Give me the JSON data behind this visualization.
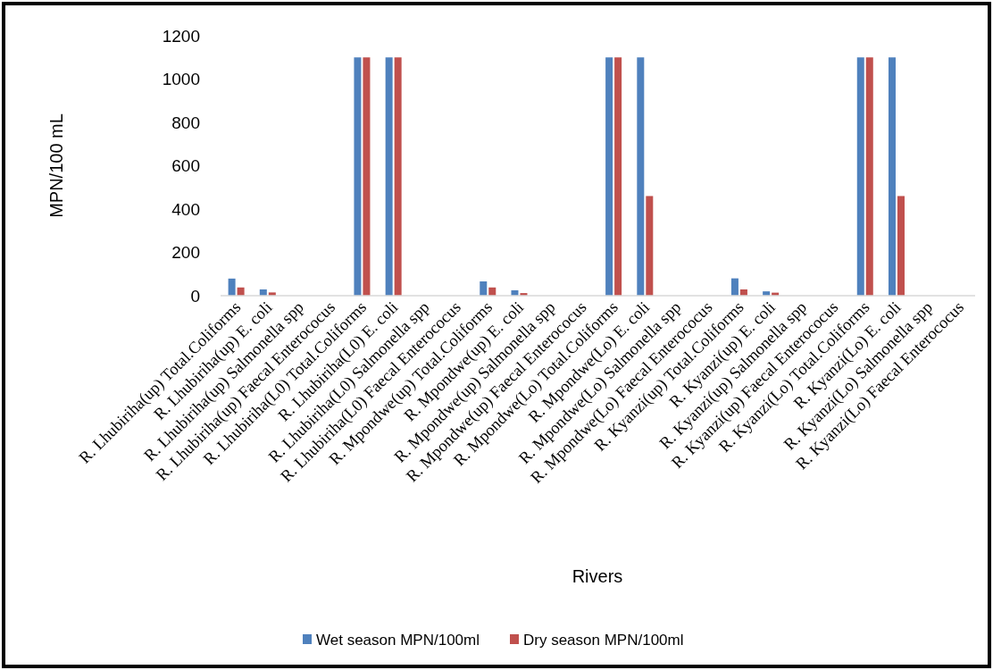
{
  "chart_data": {
    "type": "bar",
    "xlabel": "Rivers",
    "ylabel": "MPN/100 mL",
    "categories": [
      "R. Lhubiriha(up) Total.Coliforms",
      "R. Lhubiriha(up) E. coli",
      "R. Lhubiriha(up) Salmonella spp",
      "R. Lhubiriha(up) Faecal Enterococus",
      "R. Lhubiriha(L0) Total.Coliforms",
      "R. Lhubiriha(L0) E. coli",
      "R. Lhubiriha(L0) Salmonella spp",
      "R. Lhubiriha(L0) Faecal Enterococus",
      "R. Mpondwe(up) Total.Coliforms",
      "R. Mpondwe(up) E. coli",
      "R. Mpondwe(up) Salmonella spp",
      "R. Mpondwe(up) Faecal Enterococus",
      "R. Mpondwe(Lo) Total.Coliforms",
      "R. Mpondwe(Lo) E. coli",
      "R. Mpondwe(Lo) Salmonella spp",
      "R. Mpondwe(Lo) Faecal Enterococus",
      "R. Kyanzi(up) Total.Coliforms",
      "R. Kyanzi(up) E. coli",
      "R. Kyanzi(up) Salmonella spp",
      "R. Kyanzi(up) Faecal Enterococus",
      "R. Kyanzi(Lo) Total.Coliforms",
      "R. Kyanzi(Lo) E. coli",
      "R. Kyanzi(Lo) Salmonella spp",
      "R. Kyanzi(Lo) Faecal Enterococus"
    ],
    "series": [
      {
        "name": "Wet season MPN/100ml",
        "color": "#4f81bd",
        "values": [
          79,
          29,
          0,
          0,
          1100,
          1100,
          0,
          0,
          66,
          25,
          0,
          0,
          1100,
          1100,
          0,
          0,
          80,
          20,
          0,
          0,
          1100,
          1100,
          0,
          0
        ]
      },
      {
        "name": "Dry season MPN/100ml",
        "color": "#c0504d",
        "values": [
          38,
          15,
          0,
          0,
          1100,
          1100,
          0,
          0,
          38,
          12,
          0,
          0,
          1100,
          460,
          0,
          0,
          29,
          14,
          0,
          0,
          1100,
          460,
          0,
          0
        ]
      }
    ],
    "ylim": [
      0,
      1200
    ],
    "yticks": [
      0,
      200,
      400,
      600,
      800,
      1000,
      1200
    ],
    "grid": false,
    "legend": "bottom"
  }
}
